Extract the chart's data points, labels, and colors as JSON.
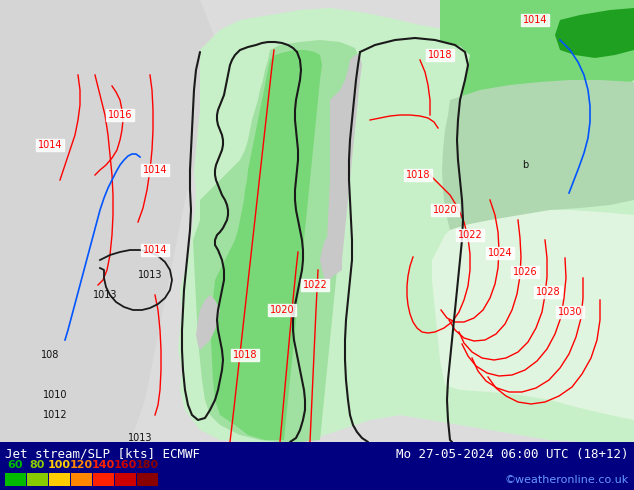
{
  "title_left": "Jet stream/SLP [kts] ECMWF",
  "title_right": "Mo 27-05-2024 06:00 UTC (18+12)",
  "credit": "©weatheronline.co.uk",
  "bg_color": "#dcdcdc",
  "sea_color": "#d8d8d8",
  "land_light_color": "#e8e8e8",
  "green_light": "#c8f0c8",
  "green_mid": "#a0e0a0",
  "green_bright": "#78d878",
  "green_dark": "#40b840",
  "green_very_light": "#e0f5e0",
  "teal_light": "#c0e8d0",
  "bottom_bar_color": "#000080",
  "red_line": "#ff0000",
  "black_line": "#000000",
  "blue_line": "#0055ff",
  "gray_line": "#606060",
  "legend_colors": [
    "#00bb00",
    "#88cc00",
    "#ffcc00",
    "#ff8800",
    "#ff2200",
    "#cc0000",
    "#880000"
  ],
  "legend_values": [
    "60",
    "80",
    "100",
    "120",
    "140",
    "160",
    "180"
  ],
  "font_title": 9,
  "font_credit": 8,
  "font_label": 7,
  "font_legend": 8
}
